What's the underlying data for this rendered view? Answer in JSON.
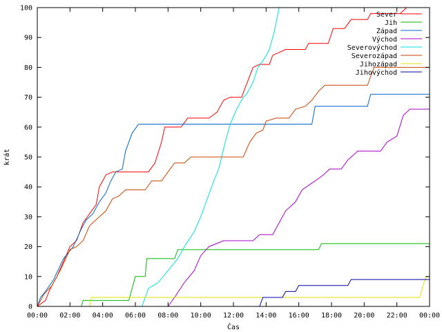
{
  "chart_data": {
    "type": "line",
    "xlabel": "Čas",
    "ylabel": "krát",
    "xlim": [
      0,
      24
    ],
    "ylim": [
      0,
      100
    ],
    "x_ticks": [
      {
        "value": 0,
        "label": "00:00"
      },
      {
        "value": 2,
        "label": "02:00"
      },
      {
        "value": 4,
        "label": "04:00"
      },
      {
        "value": 6,
        "label": "06:00"
      },
      {
        "value": 8,
        "label": "08:00"
      },
      {
        "value": 10,
        "label": "10:00"
      },
      {
        "value": 12,
        "label": "12:00"
      },
      {
        "value": 14,
        "label": "14:00"
      },
      {
        "value": 16,
        "label": "16:00"
      },
      {
        "value": 18,
        "label": "18:00"
      },
      {
        "value": 20,
        "label": "20:00"
      },
      {
        "value": 22,
        "label": "22:00"
      },
      {
        "value": 24,
        "label": "00:00"
      }
    ],
    "y_ticks": [
      0,
      10,
      20,
      30,
      40,
      50,
      60,
      70,
      80,
      90,
      100
    ],
    "grid": false,
    "legend_position": "top-right",
    "series": [
      {
        "name": "Sever",
        "color": "#ff0000",
        "points": [
          [
            0,
            0
          ],
          [
            0.5,
            2
          ],
          [
            0.8,
            6
          ],
          [
            1.2,
            10
          ],
          [
            1.6,
            15
          ],
          [
            2,
            20
          ],
          [
            2.4,
            22
          ],
          [
            2.8,
            28
          ],
          [
            3.2,
            31
          ],
          [
            3.6,
            34
          ],
          [
            3.8,
            40
          ],
          [
            4.2,
            44
          ],
          [
            4.6,
            45
          ],
          [
            5,
            45
          ],
          [
            6.8,
            45
          ],
          [
            7.2,
            48
          ],
          [
            7.6,
            55
          ],
          [
            7.8,
            60
          ],
          [
            8.8,
            60
          ],
          [
            9.2,
            63
          ],
          [
            10.5,
            63
          ],
          [
            11,
            65
          ],
          [
            11.4,
            69
          ],
          [
            11.8,
            70
          ],
          [
            12.5,
            70
          ],
          [
            13.2,
            80
          ],
          [
            13.6,
            81
          ],
          [
            14.2,
            81
          ],
          [
            14.4,
            84
          ],
          [
            15.2,
            86
          ],
          [
            16.4,
            86
          ],
          [
            16.6,
            88
          ],
          [
            17.8,
            88
          ],
          [
            18.1,
            93
          ],
          [
            18.8,
            93
          ],
          [
            19.2,
            96
          ],
          [
            20.2,
            96
          ],
          [
            20.4,
            98
          ],
          [
            22.2,
            98
          ],
          [
            22.6,
            100
          ],
          [
            24,
            100
          ]
        ]
      },
      {
        "name": "Jih",
        "color": "#00bb00",
        "points": [
          [
            0,
            0
          ],
          [
            2.7,
            0
          ],
          [
            2.8,
            2
          ],
          [
            5.6,
            2
          ],
          [
            5.8,
            6
          ],
          [
            6,
            10
          ],
          [
            6.6,
            10
          ],
          [
            6.7,
            16
          ],
          [
            8.4,
            16
          ],
          [
            8.6,
            19
          ],
          [
            17.2,
            19
          ],
          [
            17.4,
            21
          ],
          [
            24,
            21
          ]
        ]
      },
      {
        "name": "Západ",
        "color": "#0066cc",
        "points": [
          [
            0,
            0
          ],
          [
            0.2,
            3
          ],
          [
            0.5,
            5
          ],
          [
            1,
            9
          ],
          [
            1.6,
            16
          ],
          [
            2.2,
            20
          ],
          [
            2.7,
            26
          ],
          [
            3,
            29
          ],
          [
            3.4,
            31
          ],
          [
            3.8,
            35
          ],
          [
            4.2,
            38
          ],
          [
            4.5,
            42
          ],
          [
            4.8,
            45
          ],
          [
            5.2,
            46
          ],
          [
            5.4,
            52
          ],
          [
            5.8,
            58
          ],
          [
            6.2,
            61
          ],
          [
            16.8,
            61
          ],
          [
            17,
            67
          ],
          [
            20.2,
            67
          ],
          [
            20.4,
            71
          ],
          [
            24,
            71
          ]
        ]
      },
      {
        "name": "Východ",
        "color": "#aa00cc",
        "points": [
          [
            0,
            0
          ],
          [
            8,
            0
          ],
          [
            8.4,
            3
          ],
          [
            9,
            8
          ],
          [
            9.6,
            12
          ],
          [
            10,
            17
          ],
          [
            10.5,
            20
          ],
          [
            11.4,
            22
          ],
          [
            13.2,
            22
          ],
          [
            13.6,
            24
          ],
          [
            14.4,
            24
          ],
          [
            14.8,
            28
          ],
          [
            15.2,
            32
          ],
          [
            15.8,
            35
          ],
          [
            16.2,
            39
          ],
          [
            17,
            42
          ],
          [
            17.5,
            44
          ],
          [
            17.9,
            46
          ],
          [
            18.6,
            46
          ],
          [
            19,
            49
          ],
          [
            19.6,
            52
          ],
          [
            21,
            52
          ],
          [
            21.4,
            55
          ],
          [
            22,
            57
          ],
          [
            22.4,
            64
          ],
          [
            22.8,
            66
          ],
          [
            24,
            66
          ]
        ]
      },
      {
        "name": "Severovýchod",
        "color": "#00e0e0",
        "points": [
          [
            0,
            0
          ],
          [
            6.4,
            0
          ],
          [
            6.8,
            6
          ],
          [
            7.4,
            8
          ],
          [
            8,
            12
          ],
          [
            8.6,
            16
          ],
          [
            9,
            20
          ],
          [
            9.6,
            25
          ],
          [
            10,
            30
          ],
          [
            10.4,
            36
          ],
          [
            10.8,
            42
          ],
          [
            11.1,
            46
          ],
          [
            11.5,
            55
          ],
          [
            11.8,
            61
          ],
          [
            12.2,
            66
          ],
          [
            12.6,
            70
          ],
          [
            12.8,
            71
          ],
          [
            13.2,
            75
          ],
          [
            13.5,
            80
          ],
          [
            13.9,
            83
          ],
          [
            14.2,
            86
          ],
          [
            14.5,
            92
          ],
          [
            14.8,
            100
          ],
          [
            24,
            100
          ]
        ]
      },
      {
        "name": "Severozápad",
        "color": "#cc4400",
        "points": [
          [
            0,
            0
          ],
          [
            0.4,
            4
          ],
          [
            0.9,
            7
          ],
          [
            1.4,
            12
          ],
          [
            2,
            19
          ],
          [
            2.4,
            20
          ],
          [
            2.8,
            22
          ],
          [
            3.2,
            27
          ],
          [
            3.8,
            30
          ],
          [
            4.2,
            32
          ],
          [
            4.6,
            36
          ],
          [
            5,
            37
          ],
          [
            5.4,
            39
          ],
          [
            6.6,
            39
          ],
          [
            7,
            42
          ],
          [
            7.6,
            42
          ],
          [
            8,
            45
          ],
          [
            8.4,
            48
          ],
          [
            9,
            48
          ],
          [
            9.4,
            50
          ],
          [
            12.6,
            50
          ],
          [
            13,
            55
          ],
          [
            13.4,
            58
          ],
          [
            13.8,
            59
          ],
          [
            14,
            62
          ],
          [
            14.6,
            63
          ],
          [
            15.4,
            63
          ],
          [
            15.8,
            66
          ],
          [
            16.4,
            67
          ],
          [
            16.8,
            69
          ],
          [
            17.2,
            72
          ],
          [
            17.6,
            74
          ],
          [
            20.2,
            74
          ],
          [
            20.6,
            80
          ],
          [
            24,
            80
          ]
        ]
      },
      {
        "name": "Jihozápad",
        "color": "#e0e000",
        "points": [
          [
            0,
            0
          ],
          [
            3.2,
            0
          ],
          [
            3.3,
            3
          ],
          [
            23.4,
            3
          ],
          [
            23.6,
            7
          ],
          [
            23.8,
            10
          ],
          [
            24,
            10
          ]
        ]
      },
      {
        "name": "Jihovýchod",
        "color": "#0000aa",
        "points": [
          [
            0,
            0
          ],
          [
            13.6,
            0
          ],
          [
            13.8,
            3
          ],
          [
            15,
            3
          ],
          [
            15.2,
            5
          ],
          [
            15.8,
            5
          ],
          [
            16,
            7
          ],
          [
            19,
            7
          ],
          [
            19.2,
            9
          ],
          [
            24,
            9
          ]
        ]
      }
    ]
  }
}
